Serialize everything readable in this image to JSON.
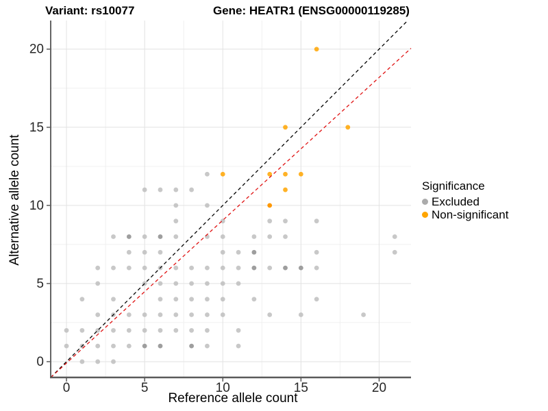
{
  "titles": {
    "left": "Variant: rs10077",
    "right": "Gene: HEATR1 (ENSG00000119285)"
  },
  "axes": {
    "x": {
      "label": "Reference allele count",
      "tick_labels": [
        "0",
        "5",
        "10",
        "15",
        "20"
      ]
    },
    "y": {
      "label": "Alternative allele count",
      "tick_labels": [
        "0",
        "5",
        "10",
        "15",
        "20"
      ]
    }
  },
  "legend": {
    "title": "Significance",
    "items": [
      {
        "label": "Excluded",
        "color": "#ABABAB"
      },
      {
        "label": "Non-significant",
        "color": "#FFA500"
      }
    ]
  },
  "chart_data": {
    "type": "scatter",
    "title": "Variant: rs10077   Gene: HEATR1 (ENSG00000119285)",
    "xlabel": "Reference allele count",
    "ylabel": "Alternative allele count",
    "xlim": [
      -1.01,
      22.04
    ],
    "ylim": [
      -1.01,
      21.83
    ],
    "xticks": [
      0,
      5,
      10,
      15,
      20
    ],
    "yticks": [
      0,
      5,
      10,
      15,
      20
    ],
    "minor_xticks": [
      2.5,
      7.5,
      12.5,
      17.5
    ],
    "minor_yticks": [
      2.5,
      7.5,
      12.5,
      17.5
    ],
    "grid": true,
    "legend_position": "right",
    "series": [
      {
        "name": "Excluded",
        "color": "#BEBEBE",
        "dark_color": "#9E9E9E",
        "points": [
          [
            1,
            0
          ],
          [
            2,
            0
          ],
          [
            3,
            0
          ],
          [
            0,
            1
          ],
          [
            1,
            1
          ],
          [
            2,
            1
          ],
          [
            3,
            1
          ],
          [
            4,
            1
          ],
          [
            5,
            1
          ],
          [
            6,
            1
          ],
          [
            8,
            1
          ],
          [
            9,
            1
          ],
          [
            11,
            1
          ],
          [
            0,
            2
          ],
          [
            1,
            2
          ],
          [
            2,
            2
          ],
          [
            3,
            2
          ],
          [
            4,
            2
          ],
          [
            5,
            2
          ],
          [
            6,
            2
          ],
          [
            7,
            2
          ],
          [
            8,
            2
          ],
          [
            9,
            2
          ],
          [
            11,
            2
          ],
          [
            2,
            3
          ],
          [
            3,
            3
          ],
          [
            4,
            3
          ],
          [
            5,
            3
          ],
          [
            6,
            3
          ],
          [
            7,
            3
          ],
          [
            8,
            3
          ],
          [
            9,
            3
          ],
          [
            10,
            3
          ],
          [
            13,
            3
          ],
          [
            15,
            3
          ],
          [
            19,
            3
          ],
          [
            1,
            4
          ],
          [
            3,
            4
          ],
          [
            6,
            4
          ],
          [
            7,
            4
          ],
          [
            8,
            4
          ],
          [
            9,
            4
          ],
          [
            10,
            4
          ],
          [
            12,
            4
          ],
          [
            16,
            4
          ],
          [
            2,
            5
          ],
          [
            5,
            5
          ],
          [
            6,
            5
          ],
          [
            7,
            5
          ],
          [
            8,
            5
          ],
          [
            9,
            5
          ],
          [
            10,
            5
          ],
          [
            11,
            5
          ],
          [
            2,
            6
          ],
          [
            3,
            6
          ],
          [
            4,
            6
          ],
          [
            5,
            6
          ],
          [
            6,
            6
          ],
          [
            7,
            6
          ],
          [
            8,
            6
          ],
          [
            9,
            6
          ],
          [
            10,
            6
          ],
          [
            11,
            6
          ],
          [
            12,
            6
          ],
          [
            13,
            6
          ],
          [
            14,
            6
          ],
          [
            15,
            6
          ],
          [
            16,
            6
          ],
          [
            4,
            7
          ],
          [
            5,
            7
          ],
          [
            6,
            7
          ],
          [
            10,
            7
          ],
          [
            11,
            7
          ],
          [
            12,
            7
          ],
          [
            16,
            7
          ],
          [
            21,
            7
          ],
          [
            3,
            8
          ],
          [
            4,
            8
          ],
          [
            5,
            8
          ],
          [
            6,
            8
          ],
          [
            7,
            8
          ],
          [
            9,
            8
          ],
          [
            10,
            8
          ],
          [
            12,
            8
          ],
          [
            13,
            8
          ],
          [
            14,
            8
          ],
          [
            21,
            8
          ],
          [
            7,
            9
          ],
          [
            10,
            9
          ],
          [
            13,
            9
          ],
          [
            14,
            9
          ],
          [
            16,
            9
          ],
          [
            7,
            10
          ],
          [
            9,
            10
          ],
          [
            5,
            11
          ],
          [
            6,
            11
          ],
          [
            7,
            11
          ],
          [
            8,
            11
          ],
          [
            9,
            12
          ]
        ],
        "dark_points": [
          [
            5,
            1
          ],
          [
            6,
            1
          ],
          [
            8,
            1
          ],
          [
            12,
            6
          ],
          [
            14,
            6
          ],
          [
            15,
            6
          ],
          [
            12,
            7
          ],
          [
            4,
            8
          ],
          [
            6,
            8
          ]
        ]
      },
      {
        "name": "Non-significant",
        "color": "#FFA500",
        "dark_color": "#FF9800",
        "points": [
          [
            13,
            10
          ],
          [
            14,
            11
          ],
          [
            10,
            12
          ],
          [
            13,
            12
          ],
          [
            14,
            12
          ],
          [
            15,
            12
          ],
          [
            14,
            15
          ],
          [
            18,
            15
          ],
          [
            16,
            20
          ]
        ],
        "dark_points": [
          [
            13,
            10
          ]
        ]
      }
    ],
    "ref_lines": [
      {
        "name": "identity-line",
        "color": "#000000",
        "style": "dashed",
        "slope": 1,
        "intercept": 0
      },
      {
        "name": "fit-line",
        "color": "#E01212",
        "style": "dashed",
        "slope": 0.914,
        "intercept": -0.09
      }
    ]
  }
}
